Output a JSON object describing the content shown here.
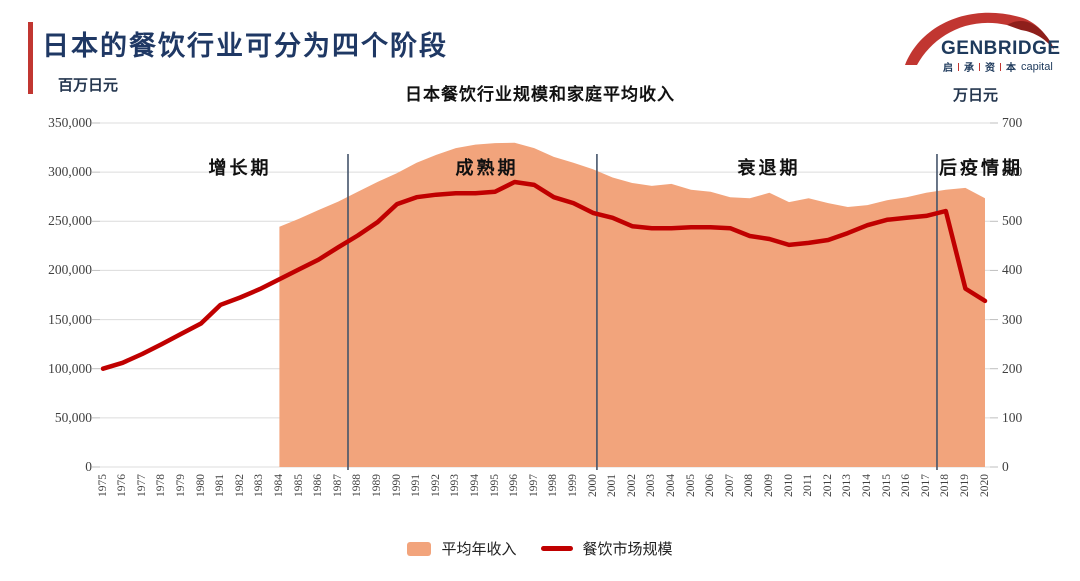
{
  "header": {
    "title": "日本的餐饮行业可分为四个阶段"
  },
  "logo": {
    "name": "GENBRIDGE",
    "cn": [
      "启",
      "承",
      "资",
      "本"
    ],
    "capital": "capital"
  },
  "chart": {
    "title": "日本餐饮行业规模和家庭平均收入",
    "left_axis_unit": "百万日元",
    "right_axis_unit": "万日元",
    "left_ticks": [
      "350,000",
      "300,000",
      "250,000",
      "200,000",
      "150,000",
      "100,000",
      "50,000",
      "0"
    ],
    "right_ticks": [
      "700",
      "600",
      "500",
      "400",
      "300",
      "200",
      "100",
      "0"
    ],
    "legend": [
      {
        "label": "平均年收入",
        "type": "area",
        "color": "#F2A47C"
      },
      {
        "label": "餐饮市场规模",
        "type": "line",
        "color": "#C00000"
      }
    ]
  },
  "chart_data": {
    "type": "combo area+line, dual axis",
    "title": "日本餐饮行业规模和家庭平均收入",
    "categories": [
      1975,
      1976,
      1977,
      1978,
      1979,
      1980,
      1981,
      1982,
      1983,
      1984,
      1985,
      1986,
      1987,
      1988,
      1989,
      1990,
      1991,
      1992,
      1993,
      1994,
      1995,
      1996,
      1997,
      1998,
      1999,
      2000,
      2001,
      2002,
      2003,
      2004,
      2005,
      2006,
      2007,
      2008,
      2009,
      2010,
      2011,
      2012,
      2013,
      2014,
      2015,
      2016,
      2017,
      2018,
      2019,
      2020
    ],
    "series": [
      {
        "name": "平均年收入",
        "type": "area",
        "axis": "right",
        "unit": "万日元",
        "values": [
          null,
          null,
          null,
          null,
          null,
          null,
          null,
          null,
          null,
          489,
          505,
          523,
          540,
          560,
          580,
          598,
          619,
          635,
          649,
          656,
          659,
          660,
          649,
          631,
          619,
          606,
          589,
          578,
          572,
          576,
          564,
          560,
          549,
          547,
          558,
          539,
          547,
          537,
          529,
          533,
          543,
          549,
          558,
          564,
          568,
          547
        ]
      },
      {
        "name": "餐饮市场规模",
        "type": "line",
        "axis": "left",
        "unit": "百万日元",
        "values": [
          100000,
          106000,
          115000,
          125000,
          135500,
          146000,
          165000,
          172500,
          181000,
          191000,
          201000,
          211000,
          223500,
          235500,
          249000,
          267500,
          274500,
          277000,
          278500,
          278500,
          280000,
          290000,
          287000,
          274500,
          268500,
          258500,
          253500,
          245000,
          243000,
          243000,
          244000,
          244000,
          243000,
          235000,
          232000,
          226000,
          228000,
          231000,
          238000,
          246000,
          251500,
          253500,
          255500,
          260500,
          181500,
          169000
        ]
      }
    ],
    "left_axis": {
      "label": "百万日元",
      "min": 0,
      "max": 350000,
      "step": 50000
    },
    "right_axis": {
      "label": "万日元",
      "min": 0,
      "max": 700,
      "step": 100
    },
    "grid": true,
    "legend_position": "bottom",
    "phases": [
      {
        "label": "增长期",
        "center_year": 1982.0
      },
      {
        "label": "成熟期",
        "center_year": 1994.6
      },
      {
        "label": "衰退期",
        "center_year": 2009.0
      },
      {
        "label": "后疫情期",
        "center_year": 2019.8
      }
    ],
    "divider_years": [
      1987.5,
      2000.2,
      2017.55
    ]
  },
  "colors": {
    "area_fill": "#F2A47C",
    "line": "#C00000",
    "divider": "#44546A",
    "gridline": "#DCDCDC",
    "tick": "#BFBFBF",
    "title_navy": "#1F3864",
    "accent_red": "#C13631"
  }
}
